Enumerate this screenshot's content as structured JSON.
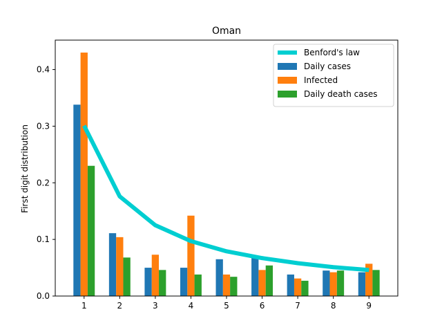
{
  "chart_data": {
    "type": "bar",
    "title": "Oman",
    "xlabel": "",
    "ylabel": "First digit distribution",
    "categories": [
      "1",
      "2",
      "3",
      "4",
      "5",
      "6",
      "7",
      "8",
      "9"
    ],
    "xticks": [
      "1",
      "2",
      "3",
      "4",
      "5",
      "6",
      "7",
      "8",
      "9"
    ],
    "yticks": [
      "0.0",
      "0.1",
      "0.2",
      "0.3",
      "0.4"
    ],
    "ylim": [
      0,
      0.452
    ],
    "grid": false,
    "legend_position": "top-right",
    "series": [
      {
        "name": "Daily cases",
        "type": "bar",
        "color": "#1f77b4",
        "values": [
          0.338,
          0.111,
          0.05,
          0.05,
          0.065,
          0.068,
          0.038,
          0.045,
          0.042
        ]
      },
      {
        "name": "Infected",
        "type": "bar",
        "color": "#ff7f0e",
        "values": [
          0.43,
          0.104,
          0.073,
          0.142,
          0.038,
          0.046,
          0.031,
          0.042,
          0.057
        ]
      },
      {
        "name": "Daily death cases",
        "type": "bar",
        "color": "#2ca02c",
        "values": [
          0.23,
          0.068,
          0.046,
          0.038,
          0.034,
          0.054,
          0.027,
          0.045,
          0.046
        ]
      },
      {
        "name": "Benford's law",
        "type": "line",
        "color": "#00ced1",
        "values": [
          0.301,
          0.176,
          0.125,
          0.097,
          0.079,
          0.067,
          0.058,
          0.051,
          0.046
        ]
      }
    ],
    "legend_order": [
      "Benford's law",
      "Daily cases",
      "Infected",
      "Daily death cases"
    ]
  }
}
